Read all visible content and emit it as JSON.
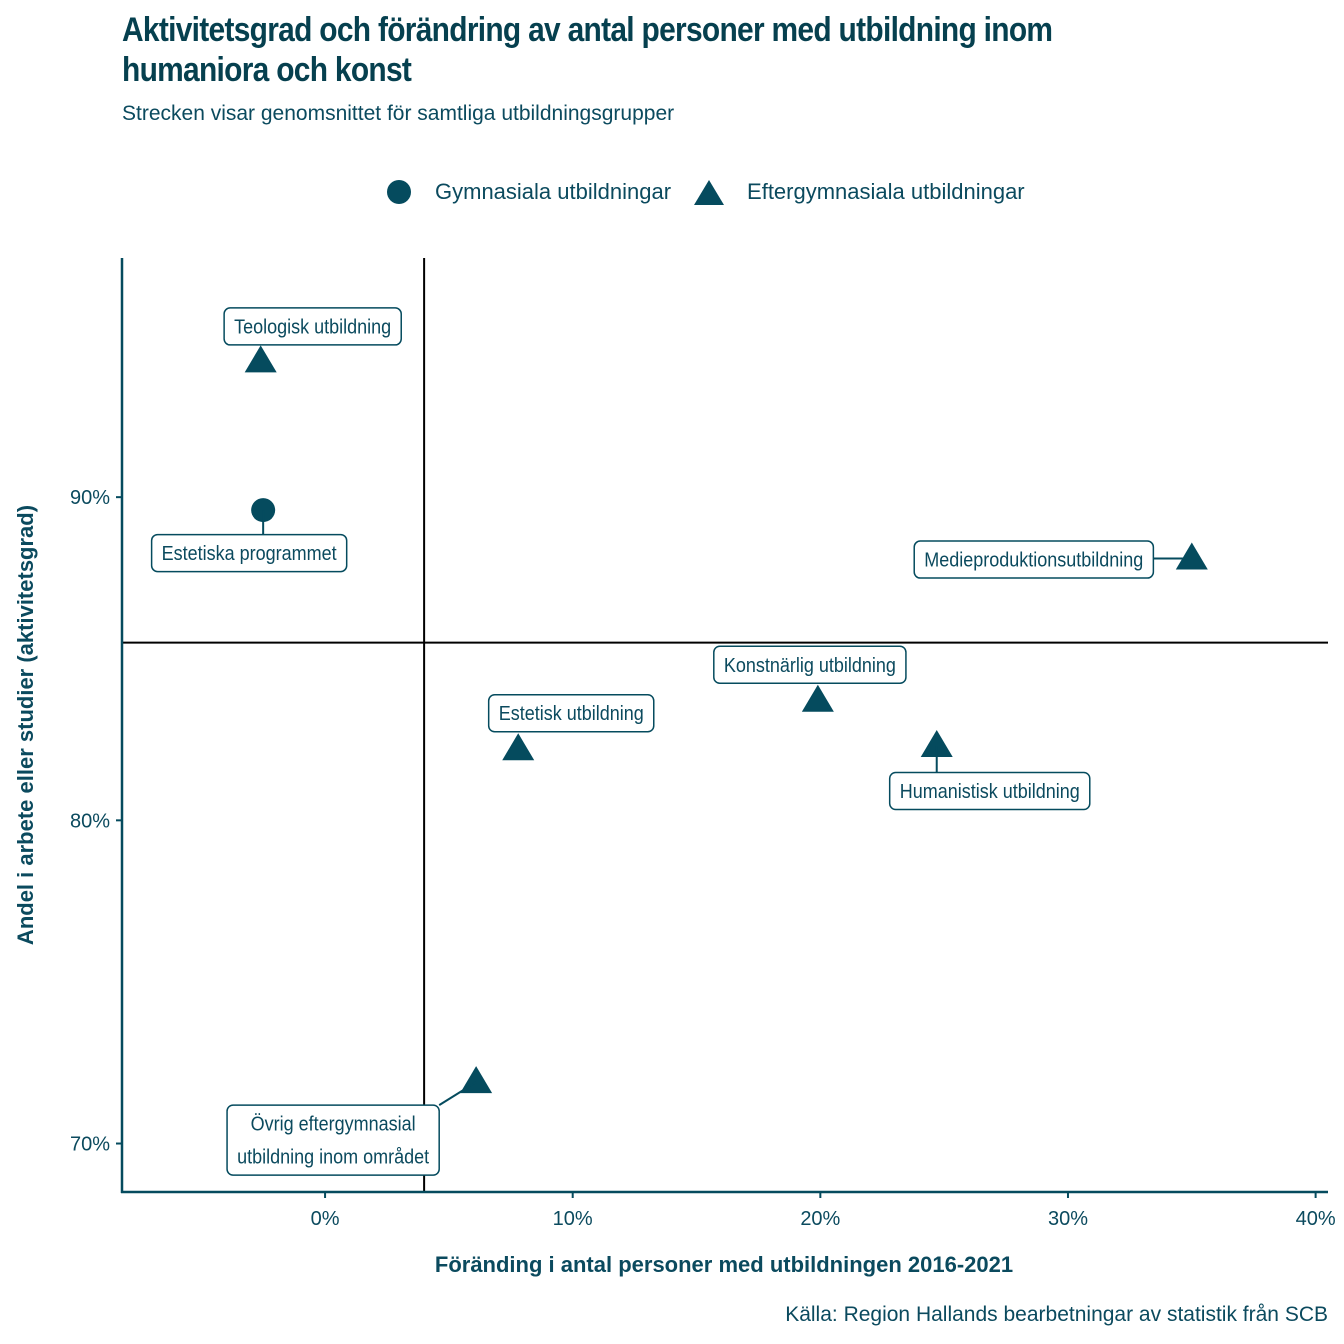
{
  "title": "Aktivitetsgrad och förändring av antal personer med utbildning inom humaniora och konst",
  "subtitle": "Strecken visar genomsnittet för samtliga utbildningsgrupper",
  "legend": [
    {
      "label": "Gymnasiala utbildningar",
      "shape": "circle-icon"
    },
    {
      "label": "Eftergymnasiala utbildningar",
      "shape": "triangle-icon"
    }
  ],
  "caption": "Källa: Region Hallands bearbetningar av statistik från SCB",
  "colors": {
    "marker": "#054b5e",
    "text": "#0b4a5e",
    "refline": "#000000"
  },
  "chart_data": {
    "type": "scatter",
    "title": "Aktivitetsgrad och förändring av antal personer med utbildning inom humaniora och konst",
    "subtitle": "Strecken visar genomsnittet för samtliga utbildningsgrupper",
    "xlabel": "Föränding i antal personer med utbildningen 2016-2021",
    "ylabel": "Andel i arbete eller studier (aktivitetsgrad)",
    "xlim": [
      -8.2,
      40.5
    ],
    "ylim": [
      68.5,
      97.4
    ],
    "xticks": [
      0,
      10,
      20,
      30,
      40
    ],
    "xtick_labels": [
      "0%",
      "10%",
      "20%",
      "30%",
      "40%"
    ],
    "yticks": [
      70,
      80,
      90
    ],
    "ytick_labels": [
      "70%",
      "80%",
      "90%"
    ],
    "grid": false,
    "legend_position": "top",
    "reference_lines": {
      "x": 4.0,
      "y": 85.5
    },
    "series": [
      {
        "name": "Gymnasiala utbildningar",
        "marker": "circle",
        "points": [
          {
            "label": "Estetiska programmet",
            "x": -2.5,
            "y": 89.6
          }
        ]
      },
      {
        "name": "Eftergymnasiala utbildningar",
        "marker": "triangle",
        "points": [
          {
            "label": "Teologisk utbildning",
            "x": -2.6,
            "y": 94.2
          },
          {
            "label": "Medieproduktionsutbildning",
            "x": 35.0,
            "y": 88.1
          },
          {
            "label": "Konstnärlig utbildning",
            "x": 19.9,
            "y": 83.7
          },
          {
            "label": "Estetisk utbildning",
            "x": 7.8,
            "y": 82.2
          },
          {
            "label": "Humanistisk utbildning",
            "x": 24.7,
            "y": 82.3
          },
          {
            "label": "Övrig eftergymnasial utbildning inom området",
            "x": 6.1,
            "y": 71.9
          }
        ]
      }
    ]
  }
}
